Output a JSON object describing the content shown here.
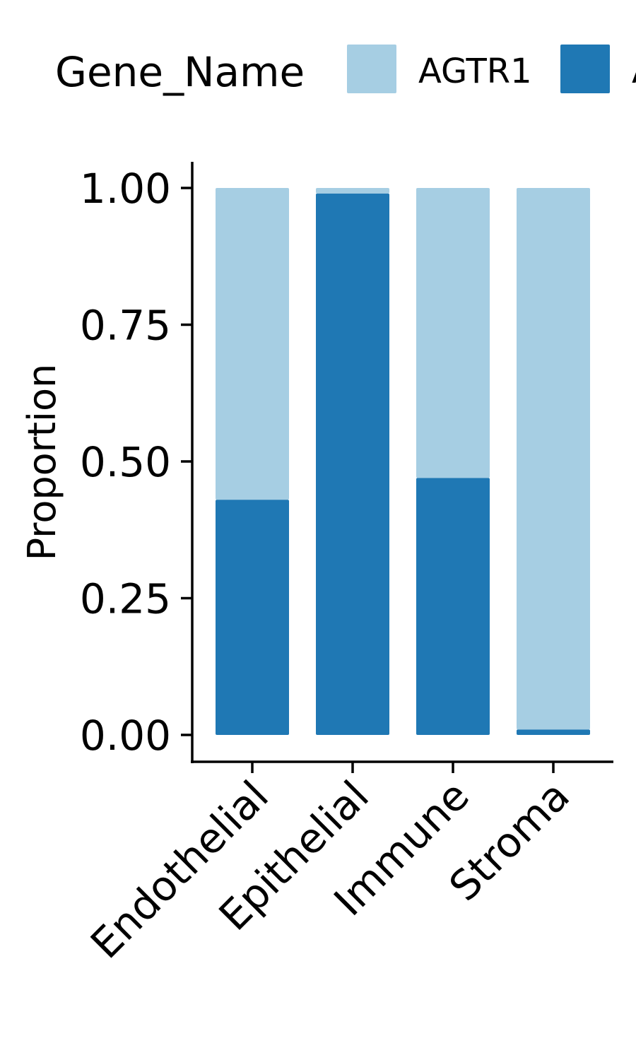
{
  "chart_data": {
    "type": "bar",
    "stacked": true,
    "categories": [
      "Endothelial",
      "Epithelial",
      "Immune",
      "Stroma"
    ],
    "series": [
      {
        "name": "AGTR1",
        "color": "#a6cee3",
        "values": [
          0.57,
          0.01,
          0.53,
          0.99
        ]
      },
      {
        "name": "A",
        "color": "#1f78b4",
        "values": [
          0.43,
          0.99,
          0.47,
          0.01
        ]
      }
    ],
    "ylabel": "Proportion",
    "xlabel": "",
    "ylim": [
      0,
      1
    ],
    "yticks": [
      "0.00",
      "0.25",
      "0.50",
      "0.75",
      "1.00"
    ],
    "legend": {
      "title": "Gene_Name",
      "position": "top"
    },
    "grid": false
  }
}
